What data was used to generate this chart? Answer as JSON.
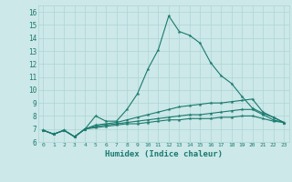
{
  "xlabel": "Humidex (Indice chaleur)",
  "bg_color": "#cce8e8",
  "line_color": "#1a7a6e",
  "grid_color": "#aed4d4",
  "ylim": [
    6,
    16.5
  ],
  "xlim": [
    -0.5,
    23.5
  ],
  "yticks": [
    6,
    7,
    8,
    9,
    10,
    11,
    12,
    13,
    14,
    15,
    16
  ],
  "xticks": [
    0,
    1,
    2,
    3,
    4,
    5,
    6,
    7,
    8,
    9,
    10,
    11,
    12,
    13,
    14,
    15,
    16,
    17,
    18,
    19,
    20,
    21,
    22,
    23
  ],
  "series": [
    [
      6.9,
      6.6,
      6.9,
      6.4,
      7.0,
      8.0,
      7.6,
      7.6,
      8.5,
      9.7,
      11.6,
      13.1,
      15.7,
      14.5,
      14.2,
      13.6,
      12.1,
      11.1,
      10.5,
      9.5,
      8.6,
      8.2,
      7.9,
      7.5
    ],
    [
      6.9,
      6.6,
      6.9,
      6.4,
      7.0,
      7.3,
      7.4,
      7.5,
      7.7,
      7.9,
      8.1,
      8.3,
      8.5,
      8.7,
      8.8,
      8.9,
      9.0,
      9.0,
      9.1,
      9.2,
      9.3,
      8.3,
      7.9,
      7.5
    ],
    [
      6.9,
      6.6,
      6.9,
      6.4,
      7.0,
      7.2,
      7.3,
      7.4,
      7.5,
      7.6,
      7.7,
      7.8,
      7.9,
      8.0,
      8.1,
      8.1,
      8.2,
      8.3,
      8.4,
      8.5,
      8.5,
      8.1,
      7.7,
      7.5
    ],
    [
      6.9,
      6.6,
      6.9,
      6.4,
      7.0,
      7.1,
      7.2,
      7.3,
      7.4,
      7.4,
      7.5,
      7.6,
      7.7,
      7.7,
      7.8,
      7.8,
      7.8,
      7.9,
      7.9,
      8.0,
      8.0,
      7.8,
      7.6,
      7.5
    ]
  ]
}
